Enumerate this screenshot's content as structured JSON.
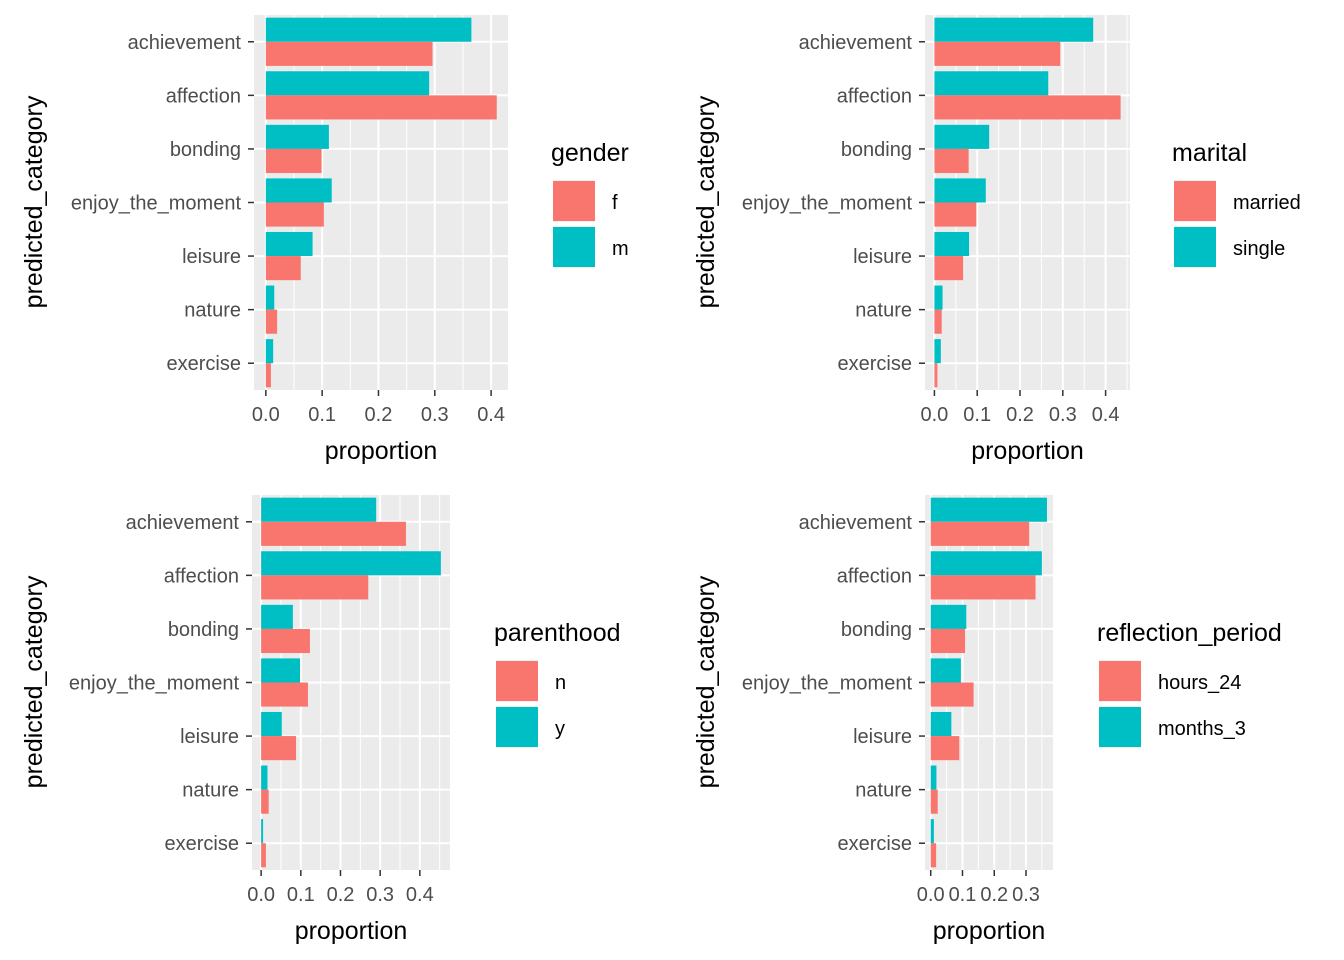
{
  "chart_data": [
    {
      "type": "bar",
      "orientation": "horizontal",
      "categories": [
        "achievement",
        "affection",
        "bonding",
        "enjoy_the_moment",
        "leisure",
        "nature",
        "exercise"
      ],
      "series": [
        {
          "name": "f",
          "color": "#F8766D",
          "values": [
            0.296,
            0.41,
            0.099,
            0.103,
            0.062,
            0.02,
            0.009
          ]
        },
        {
          "name": "m",
          "color": "#00BFC4",
          "values": [
            0.365,
            0.29,
            0.112,
            0.117,
            0.083,
            0.015,
            0.013
          ]
        }
      ],
      "xlabel": "proportion",
      "ylabel": "predicted_category",
      "legend_title": "gender",
      "xticks": [
        0.0,
        0.1,
        0.2,
        0.3,
        0.4
      ],
      "xtick_labels": [
        "0.0",
        "0.1",
        "0.2",
        "0.3",
        "0.4"
      ],
      "xlim": [
        -0.021,
        0.43
      ],
      "grid": true,
      "legend_position": "right"
    },
    {
      "type": "bar",
      "orientation": "horizontal",
      "categories": [
        "achievement",
        "affection",
        "bonding",
        "enjoy_the_moment",
        "leisure",
        "nature",
        "exercise"
      ],
      "series": [
        {
          "name": "married",
          "color": "#F8766D",
          "values": [
            0.294,
            0.435,
            0.08,
            0.098,
            0.067,
            0.017,
            0.007
          ]
        },
        {
          "name": "single",
          "color": "#00BFC4",
          "values": [
            0.371,
            0.266,
            0.128,
            0.12,
            0.081,
            0.019,
            0.015
          ]
        }
      ],
      "xlabel": "proportion",
      "ylabel": "predicted_category",
      "legend_title": "marital",
      "xticks": [
        0.0,
        0.1,
        0.2,
        0.3,
        0.4
      ],
      "xtick_labels": [
        "0.0",
        "0.1",
        "0.2",
        "0.3",
        "0.4"
      ],
      "xlim": [
        -0.022,
        0.457
      ],
      "grid": true,
      "legend_position": "right"
    },
    {
      "type": "bar",
      "orientation": "horizontal",
      "categories": [
        "achievement",
        "affection",
        "bonding",
        "enjoy_the_moment",
        "leisure",
        "nature",
        "exercise"
      ],
      "series": [
        {
          "name": "n",
          "color": "#F8766D",
          "values": [
            0.365,
            0.27,
            0.123,
            0.118,
            0.088,
            0.019,
            0.012
          ]
        },
        {
          "name": "y",
          "color": "#00BFC4",
          "values": [
            0.29,
            0.453,
            0.08,
            0.098,
            0.052,
            0.016,
            0.005
          ]
        }
      ],
      "xlabel": "proportion",
      "ylabel": "predicted_category",
      "legend_title": "parenthood",
      "xticks": [
        0.0,
        0.1,
        0.2,
        0.3,
        0.4
      ],
      "xtick_labels": [
        "0.0",
        "0.1",
        "0.2",
        "0.3",
        "0.4"
      ],
      "xlim": [
        -0.023,
        0.476
      ],
      "grid": true,
      "legend_position": "right"
    },
    {
      "type": "bar",
      "orientation": "horizontal",
      "categories": [
        "achievement",
        "affection",
        "bonding",
        "enjoy_the_moment",
        "leisure",
        "nature",
        "exercise"
      ],
      "series": [
        {
          "name": "hours_24",
          "color": "#F8766D",
          "values": [
            0.31,
            0.33,
            0.108,
            0.135,
            0.09,
            0.022,
            0.017
          ]
        },
        {
          "name": "months_3",
          "color": "#00BFC4",
          "values": [
            0.366,
            0.35,
            0.112,
            0.095,
            0.065,
            0.018,
            0.01
          ]
        }
      ],
      "xlabel": "proportion",
      "ylabel": "predicted_category",
      "legend_title": "reflection_period",
      "xticks": [
        0.0,
        0.1,
        0.2,
        0.3
      ],
      "xtick_labels": [
        "0.0",
        "0.1",
        "0.2",
        "0.3"
      ],
      "xlim": [
        -0.018,
        0.385
      ],
      "grid": true,
      "legend_position": "right"
    }
  ]
}
